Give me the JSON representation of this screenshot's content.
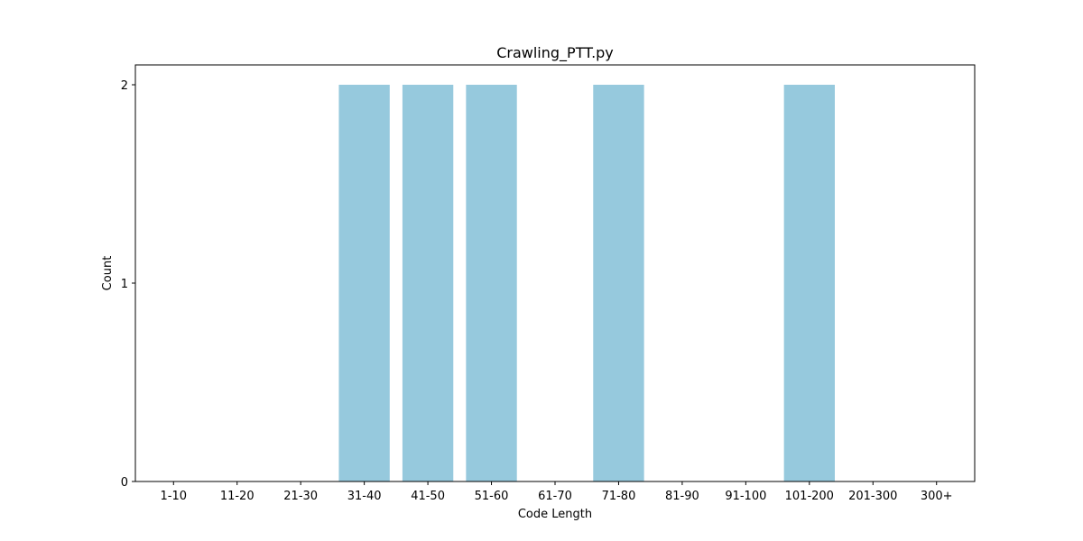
{
  "chart_data": {
    "type": "bar",
    "title": "Crawling_PTT.py",
    "xlabel": "Code Length",
    "ylabel": "Count",
    "categories": [
      "1-10",
      "11-20",
      "21-30",
      "31-40",
      "41-50",
      "51-60",
      "61-70",
      "71-80",
      "81-90",
      "91-100",
      "101-200",
      "201-300",
      "300+"
    ],
    "values": [
      0,
      0,
      0,
      2,
      2,
      2,
      0,
      2,
      0,
      0,
      2,
      0,
      0
    ],
    "ylim": [
      0,
      2.1
    ],
    "yticks": [
      0,
      1,
      2
    ],
    "bar_color": "#96c9dd",
    "grid": false,
    "legend": "none"
  }
}
